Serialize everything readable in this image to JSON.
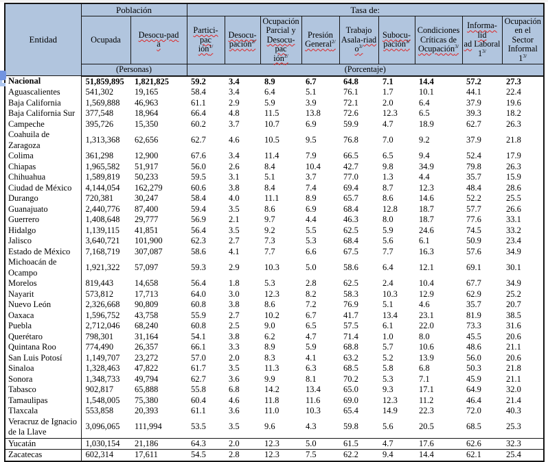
{
  "colors": {
    "header_bg": "#b1c5de",
    "table_border": "#141414",
    "spellcheck_squiggle": "#dd2222",
    "cursor_marker": "#7294e0",
    "cursor_marker_light": "#adc6f0"
  },
  "table": {
    "corner_label": "Entidad",
    "groups": [
      {
        "label": "Población",
        "sub": "(Personas)"
      },
      {
        "label": "Tasa de:",
        "sub": "(Porcentaje)"
      }
    ],
    "columns": [
      {
        "id": "ocupada",
        "parts": [
          {
            "text": "Ocupada"
          }
        ]
      },
      {
        "id": "desocupada",
        "parts": [
          {
            "text": "Desocu-pad\na",
            "squiggle": true
          }
        ]
      },
      {
        "id": "participacion",
        "parts": [
          {
            "text": "Partici-pac\nión",
            "squiggle": true,
            "sup": "1/"
          }
        ]
      },
      {
        "id": "desocupacion",
        "parts": [
          {
            "text": "Desocu-\npación",
            "squiggle": true,
            "sup": "2/"
          }
        ]
      },
      {
        "id": "ocupacion-parcial",
        "parts": [
          {
            "text": "Ocupación\nParcial y\n"
          },
          {
            "text": "Desocu-pac\nión",
            "squiggle": true,
            "sup": "2/"
          }
        ]
      },
      {
        "id": "presion-general",
        "parts": [
          {
            "text": "Presión\n"
          },
          {
            "text": "General",
            "squiggle": true,
            "sup": "2/"
          }
        ]
      },
      {
        "id": "trabajo-asalariado",
        "parts": [
          {
            "text": "Trabajo\nAsala-"
          },
          {
            "text": "riad\no",
            "squiggle": true,
            "sup": "3/"
          }
        ]
      },
      {
        "id": "subocupacion",
        "parts": [
          {
            "text": "Subocu-\npación",
            "squiggle": true,
            "sup": "3/"
          }
        ]
      },
      {
        "id": "condiciones-criticas",
        "parts": [
          {
            "text": "Condiciones\nCríticas de\n"
          },
          {
            "text": "Ocupación",
            "squiggle": true,
            "sup": "3/"
          }
        ]
      },
      {
        "id": "informalidad-laboral",
        "parts": [
          {
            "text": "Informa-lid\nad",
            "squiggle": true
          },
          {
            "text": " Laboral\n1",
            "sup": "3/"
          }
        ]
      },
      {
        "id": "sector-informal",
        "parts": [
          {
            "text": "Ocupación\nen el Sector\nInformal 1",
            "sup": "3/"
          }
        ]
      }
    ],
    "rows": [
      {
        "entity": "Nacional",
        "bold": true,
        "values": [
          "51,859,895",
          "1,821,825",
          "59.2",
          "3.4",
          "8.9",
          "6.7",
          "64.8",
          "7.1",
          "14.4",
          "57.2",
          "27.3"
        ]
      },
      {
        "entity": "Aguascalientes",
        "values": [
          "541,302",
          "19,165",
          "58.4",
          "3.4",
          "6.4",
          "5.1",
          "76.1",
          "1.7",
          "10.1",
          "44.1",
          "22.4"
        ]
      },
      {
        "entity": "Baja California",
        "values": [
          "1,569,888",
          "46,963",
          "61.1",
          "2.9",
          "5.9",
          "3.9",
          "72.1",
          "2.0",
          "6.4",
          "37.9",
          "19.6"
        ]
      },
      {
        "entity": "Baja California Sur",
        "values": [
          "377,548",
          "18,964",
          "66.4",
          "4.8",
          "11.5",
          "13.8",
          "72.6",
          "12.3",
          "6.5",
          "39.3",
          "18.2"
        ]
      },
      {
        "entity": "Campeche",
        "values": [
          "395,726",
          "15,350",
          "60.2",
          "3.7",
          "10.7",
          "6.9",
          "59.9",
          "4.7",
          "18.9",
          "62.7",
          "26.3"
        ]
      },
      {
        "entity": "Coahuila de Zaragoza",
        "values": [
          "1,313,368",
          "62,656",
          "62.7",
          "4.6",
          "10.5",
          "9.5",
          "76.8",
          "7.0",
          "9.2",
          "37.9",
          "21.8"
        ]
      },
      {
        "entity": "Colima",
        "values": [
          "361,298",
          "12,900",
          "67.6",
          "3.4",
          "11.4",
          "7.9",
          "66.5",
          "6.5",
          "9.4",
          "52.4",
          "17.9"
        ]
      },
      {
        "entity": "Chiapas",
        "values": [
          "1,965,582",
          "51,917",
          "56.0",
          "2.6",
          "8.4",
          "10.4",
          "42.7",
          "9.8",
          "34.9",
          "79.8",
          "26.3"
        ]
      },
      {
        "entity": "Chihuahua",
        "values": [
          "1,589,819",
          "50,233",
          "59.5",
          "3.1",
          "5.1",
          "3.7",
          "77.0",
          "1.3",
          "4.4",
          "35.7",
          "15.9"
        ]
      },
      {
        "entity": "Ciudad de México",
        "values": [
          "4,144,054",
          "162,279",
          "60.6",
          "3.8",
          "8.4",
          "7.4",
          "69.4",
          "8.7",
          "12.3",
          "48.4",
          "28.6"
        ]
      },
      {
        "entity": "Durango",
        "values": [
          "720,381",
          "30,247",
          "58.4",
          "4.0",
          "11.1",
          "8.9",
          "65.7",
          "8.6",
          "14.6",
          "52.2",
          "25.5"
        ]
      },
      {
        "entity": "Guanajuato",
        "values": [
          "2,440,776",
          "87,400",
          "59.4",
          "3.5",
          "8.6",
          "6.9",
          "68.4",
          "12.8",
          "18.7",
          "57.7",
          "26.6"
        ]
      },
      {
        "entity": "Guerrero",
        "values": [
          "1,408,648",
          "29,777",
          "56.9",
          "2.1",
          "9.7",
          "4.4",
          "46.3",
          "8.0",
          "18.7",
          "77.6",
          "33.1"
        ]
      },
      {
        "entity": "Hidalgo",
        "values": [
          "1,139,115",
          "41,851",
          "56.4",
          "3.5",
          "9.2",
          "5.5",
          "62.5",
          "5.9",
          "24.6",
          "74.5",
          "33.2"
        ]
      },
      {
        "entity": "Jalisco",
        "values": [
          "3,640,721",
          "101,900",
          "62.3",
          "2.7",
          "7.3",
          "5.3",
          "68.4",
          "5.6",
          "6.1",
          "50.9",
          "23.4"
        ]
      },
      {
        "entity": "Estado de México",
        "values": [
          "7,168,719",
          "307,087",
          "58.6",
          "4.1",
          "7.7",
          "6.6",
          "67.5",
          "7.7",
          "16.3",
          "57.6",
          "34.9"
        ]
      },
      {
        "entity": "Michoacán de Ocampo",
        "values": [
          "1,921,322",
          "57,097",
          "59.3",
          "2.9",
          "10.3",
          "5.0",
          "58.6",
          "6.4",
          "12.1",
          "69.1",
          "30.1"
        ]
      },
      {
        "entity": "Morelos",
        "values": [
          "819,443",
          "14,658",
          "56.4",
          "1.8",
          "5.3",
          "2.8",
          "62.5",
          "2.4",
          "10.4",
          "67.7",
          "34.9"
        ]
      },
      {
        "entity": "Nayarit",
        "values": [
          "573,812",
          "17,713",
          "64.0",
          "3.0",
          "12.3",
          "8.2",
          "58.3",
          "10.3",
          "12.9",
          "62.9",
          "25.2"
        ]
      },
      {
        "entity": "Nuevo León",
        "values": [
          "2,326,668",
          "90,809",
          "60.8",
          "3.8",
          "8.6",
          "7.2",
          "76.9",
          "5.1",
          "4.6",
          "35.7",
          "20.7"
        ]
      },
      {
        "entity": "Oaxaca",
        "values": [
          "1,596,752",
          "43,758",
          "55.9",
          "2.7",
          "10.2",
          "6.7",
          "41.7",
          "13.4",
          "23.1",
          "81.9",
          "38.5"
        ]
      },
      {
        "entity": "Puebla",
        "values": [
          "2,712,046",
          "68,240",
          "60.8",
          "2.5",
          "9.0",
          "6.5",
          "57.5",
          "6.1",
          "22.0",
          "73.3",
          "31.6"
        ]
      },
      {
        "entity": "Querétaro",
        "values": [
          "798,301",
          "31,164",
          "54.1",
          "3.8",
          "6.2",
          "4.7",
          "71.4",
          "1.0",
          "8.0",
          "45.5",
          "20.6"
        ]
      },
      {
        "entity": "Quintana Roo",
        "values": [
          "774,490",
          "26,357",
          "66.1",
          "3.3",
          "8.9",
          "5.9",
          "68.8",
          "5.7",
          "10.6",
          "48.6",
          "21.1"
        ]
      },
      {
        "entity": "San Luis Potosí",
        "values": [
          "1,149,707",
          "23,272",
          "57.0",
          "2.0",
          "8.3",
          "4.1",
          "63.2",
          "5.2",
          "13.9",
          "56.0",
          "20.6"
        ]
      },
      {
        "entity": "Sinaloa",
        "values": [
          "1,328,463",
          "47,822",
          "61.7",
          "3.5",
          "11.3",
          "6.3",
          "68.5",
          "5.8",
          "6.8",
          "50.3",
          "21.8"
        ]
      },
      {
        "entity": "Sonora",
        "values": [
          "1,348,733",
          "49,794",
          "62.7",
          "3.6",
          "9.9",
          "8.1",
          "70.2",
          "5.3",
          "7.1",
          "45.9",
          "21.1"
        ]
      },
      {
        "entity": "Tabasco",
        "values": [
          "902,817",
          "65,888",
          "55.8",
          "6.8",
          "14.2",
          "13.4",
          "65.0",
          "9.3",
          "17.1",
          "64.9",
          "32.0"
        ]
      },
      {
        "entity": "Tamaulipas",
        "values": [
          "1,548,005",
          "75,380",
          "60.4",
          "4.6",
          "11.8",
          "11.6",
          "69.0",
          "12.3",
          "11.2",
          "46.4",
          "21.4"
        ]
      },
      {
        "entity": "Tlaxcala",
        "values": [
          "553,858",
          "20,393",
          "61.1",
          "3.6",
          "11.0",
          "10.3",
          "65.4",
          "14.9",
          "22.3",
          "72.0",
          "40.3"
        ]
      },
      {
        "entity": "Veracruz de Ignacio de la Llave",
        "rule": true,
        "values": [
          "3,096,065",
          "111,994",
          "53.5",
          "3.5",
          "9.6",
          "4.3",
          "59.8",
          "5.6",
          "20.5",
          "68.5",
          "25.3"
        ]
      },
      {
        "entity": "Yucatán",
        "rule": true,
        "values": [
          "1,030,154",
          "21,186",
          "64.3",
          "2.0",
          "12.3",
          "5.0",
          "61.5",
          "4.7",
          "17.6",
          "62.6",
          "32.3"
        ]
      },
      {
        "entity": "Zacatecas",
        "values": [
          "602,314",
          "17,611",
          "54.5",
          "2.8",
          "12.3",
          "7.5",
          "62.2",
          "9.4",
          "14.4",
          "62.1",
          "25.4"
        ]
      }
    ]
  }
}
